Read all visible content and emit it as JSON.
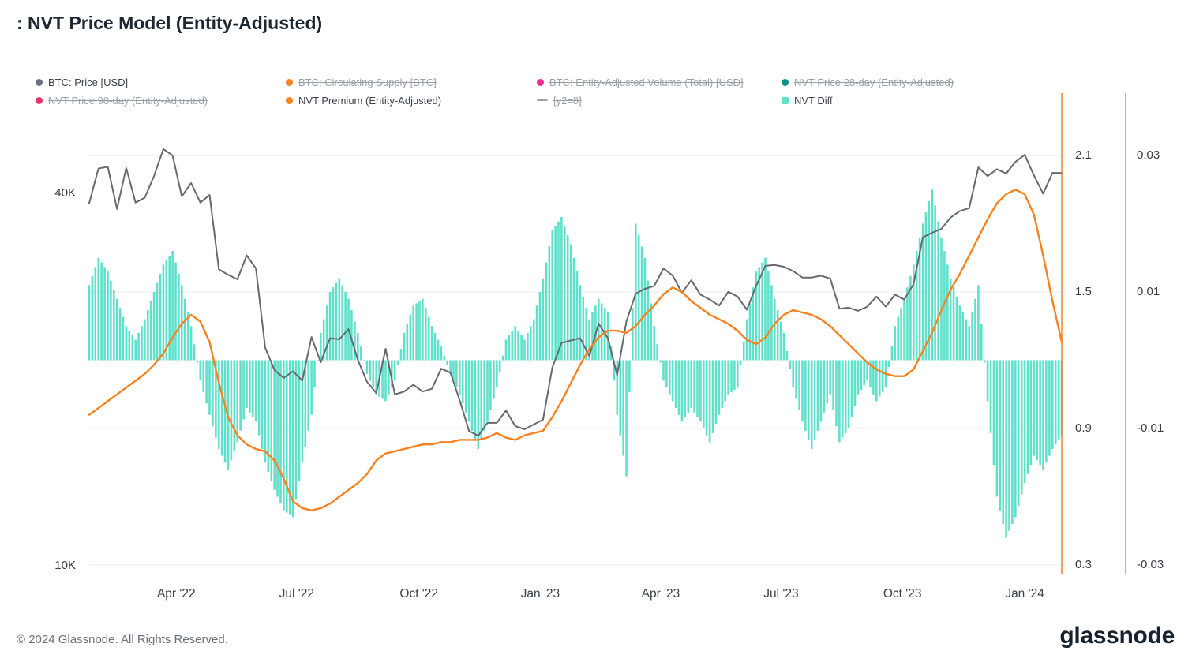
{
  "header": {
    "title": ": NVT Price Model (Entity-Adjusted)"
  },
  "legend": {
    "items": [
      {
        "label": "BTC: Price [USD]",
        "color": "#6b7280",
        "marker": "dot",
        "struck": false
      },
      {
        "label": "BTC: Circulating Supply [BTC]",
        "color": "#f8821f",
        "marker": "dot",
        "struck": true
      },
      {
        "label": "BTC: Entity-Adjusted Volume (Total) [USD]",
        "color": "#ef2f8f",
        "marker": "dot",
        "struck": true
      },
      {
        "label": "NVT Price 28-day (Entity-Adjusted)",
        "color": "#0e9384",
        "marker": "dot",
        "struck": true
      },
      {
        "label": "NVT Price 90-day (Entity-Adjusted)",
        "color": "#e8336d",
        "marker": "dot",
        "struck": true
      },
      {
        "label": "NVT Premium (Entity-Adjusted)",
        "color": "#f8821f",
        "marker": "dot",
        "struck": false
      },
      {
        "label": "[y2=8]",
        "color": "#9ca3af",
        "marker": "dash",
        "struck": true
      },
      {
        "label": "NVT Diff",
        "color": "#5fe0cb",
        "marker": "square",
        "struck": false
      }
    ]
  },
  "footer": {
    "copyright": "© 2024 Glassnode. All Rights Reserved.",
    "brand": "glassnode"
  },
  "chart_data": {
    "type": "mixed",
    "title": ": NVT Price Model (Entity-Adjusted)",
    "x_description": "Weekly samples, late Jan 2022 - Feb 2024",
    "grid_color": "#e9ebee",
    "x_ticks": [
      {
        "label": "Apr '22",
        "week": 9.4
      },
      {
        "label": "Jul '22",
        "week": 22.4
      },
      {
        "label": "Oct '22",
        "week": 35.6
      },
      {
        "label": "Jan '23",
        "week": 48.7
      },
      {
        "label": "Apr '23",
        "week": 61.7
      },
      {
        "label": "Jul '23",
        "week": 74.7
      },
      {
        "label": "Oct '23",
        "week": 87.8
      },
      {
        "label": "Jan '24",
        "week": 101.0
      }
    ],
    "price_axis": {
      "scale": "log",
      "side": "left",
      "range": [
        9700,
        58000
      ],
      "ticks": [
        {
          "label": "40K",
          "value": 40000
        },
        {
          "label": "10K",
          "value": 10000
        }
      ]
    },
    "premium_axis": {
      "scale": "linear",
      "side": "right",
      "axis_line_color": "#f8821f",
      "ticks": [
        {
          "label": "2.1",
          "value": 2.1
        },
        {
          "label": "1.5",
          "value": 1.5
        },
        {
          "label": "0.9",
          "value": 0.9
        },
        {
          "label": "0.3",
          "value": 0.3
        }
      ]
    },
    "diff_axis": {
      "scale": "linear",
      "side": "far-right",
      "axis_line_color": "#5fe0cb",
      "ticks": [
        {
          "label": "0.03",
          "value": 0.03
        },
        {
          "label": "0.01",
          "value": 0.01
        },
        {
          "label": "-0.01",
          "value": -0.01
        },
        {
          "label": "-0.03",
          "value": -0.03
        }
      ]
    },
    "series": [
      {
        "name": "BTC: Price [USD]",
        "type": "line",
        "axis": "price",
        "color": "#66696f",
        "values": [
          38500,
          43800,
          44100,
          37700,
          43900,
          38600,
          39300,
          42600,
          47100,
          46000,
          39500,
          41500,
          38600,
          39700,
          30100,
          29500,
          29000,
          31700,
          30200,
          22500,
          20700,
          20100,
          20600,
          19900,
          23400,
          21300,
          23300,
          23200,
          24100,
          21500,
          19800,
          19000,
          22400,
          18900,
          19100,
          19600,
          19100,
          19300,
          20800,
          20500,
          18500,
          16500,
          16200,
          17000,
          17000,
          17800,
          16800,
          16600,
          16900,
          17200,
          20900,
          22900,
          23100,
          23300,
          21800,
          24600,
          23300,
          20300,
          24800,
          27500,
          28000,
          28300,
          30200,
          29400,
          27600,
          28900,
          27400,
          26900,
          26300,
          27700,
          27200,
          25900,
          28300,
          30500,
          30600,
          30400,
          29900,
          29200,
          29200,
          29400,
          29100,
          26000,
          26100,
          25800,
          26200,
          27200,
          26200,
          27400,
          26900,
          28500,
          33900,
          34500,
          35000,
          36500,
          37400,
          37800,
          44000,
          42600,
          43700,
          43000,
          44900,
          46100,
          42700,
          39900,
          43100,
          43100
        ]
      },
      {
        "name": "NVT Premium (Entity-Adjusted)",
        "type": "line",
        "axis": "premium",
        "color": "#f8821f",
        "values": [
          0.96,
          0.99,
          1.02,
          1.05,
          1.08,
          1.11,
          1.14,
          1.18,
          1.23,
          1.3,
          1.36,
          1.4,
          1.37,
          1.28,
          1.1,
          0.95,
          0.87,
          0.83,
          0.81,
          0.8,
          0.76,
          0.68,
          0.58,
          0.55,
          0.54,
          0.55,
          0.57,
          0.6,
          0.63,
          0.66,
          0.7,
          0.76,
          0.79,
          0.8,
          0.81,
          0.82,
          0.83,
          0.83,
          0.84,
          0.84,
          0.85,
          0.85,
          0.85,
          0.86,
          0.88,
          0.86,
          0.85,
          0.87,
          0.88,
          0.89,
          0.95,
          1.02,
          1.1,
          1.18,
          1.25,
          1.3,
          1.33,
          1.33,
          1.32,
          1.35,
          1.4,
          1.44,
          1.49,
          1.52,
          1.5,
          1.46,
          1.43,
          1.4,
          1.38,
          1.36,
          1.33,
          1.29,
          1.27,
          1.3,
          1.36,
          1.4,
          1.42,
          1.41,
          1.4,
          1.38,
          1.35,
          1.31,
          1.27,
          1.23,
          1.19,
          1.16,
          1.14,
          1.13,
          1.13,
          1.16,
          1.24,
          1.32,
          1.42,
          1.51,
          1.58,
          1.66,
          1.74,
          1.82,
          1.89,
          1.93,
          1.95,
          1.93,
          1.84,
          1.66,
          1.46,
          1.28
        ]
      },
      {
        "name": "NVT Diff",
        "type": "bar",
        "axis": "diff",
        "color": "#5fe0cb",
        "values": [
          0.011,
          0.015,
          0.013,
          0.009,
          0.005,
          0.003,
          0.006,
          0.01,
          0.014,
          0.016,
          0.011,
          0.005,
          -0.003,
          -0.008,
          -0.013,
          -0.016,
          -0.012,
          -0.007,
          -0.009,
          -0.015,
          -0.019,
          -0.022,
          -0.023,
          -0.015,
          -0.008,
          0.004,
          0.01,
          0.012,
          0.009,
          0.004,
          -0.002,
          -0.005,
          -0.006,
          -0.003,
          0.004,
          0.008,
          0.009,
          0.005,
          0.002,
          -0.002,
          -0.005,
          -0.009,
          -0.013,
          -0.009,
          -0.004,
          0.003,
          0.005,
          0.003,
          0.006,
          0.012,
          0.019,
          0.021,
          0.017,
          0.011,
          0.006,
          0.009,
          0.007,
          -0.008,
          -0.017,
          0.02,
          0.015,
          0.005,
          -0.003,
          -0.006,
          -0.009,
          -0.007,
          -0.009,
          -0.012,
          -0.008,
          -0.005,
          -0.004,
          0.006,
          0.013,
          0.015,
          0.009,
          0.004,
          -0.004,
          -0.009,
          -0.013,
          -0.009,
          -0.005,
          -0.012,
          -0.01,
          -0.005,
          -0.003,
          -0.006,
          -0.004,
          0.005,
          0.009,
          0.014,
          0.02,
          0.025,
          0.018,
          0.012,
          0.008,
          0.005,
          0.011,
          -0.006,
          -0.02,
          -0.026,
          -0.023,
          -0.018,
          -0.014,
          -0.016,
          -0.013,
          -0.011
        ]
      }
    ]
  }
}
